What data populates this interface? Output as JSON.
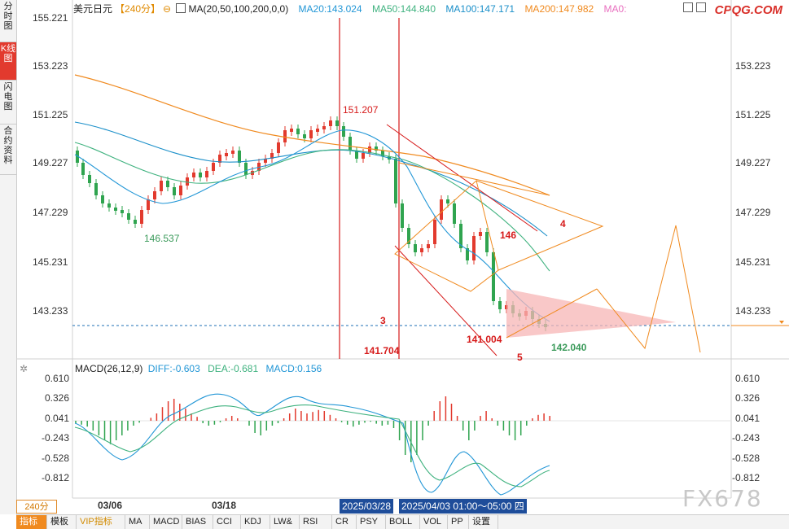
{
  "app": {
    "symbol": "美元日元",
    "period": "【240分】",
    "ma_label": "MA(20,50,100,200,0,0)"
  },
  "legend": {
    "ma20": "MA20:143.024",
    "ma50": "MA50:144.840",
    "ma100": "MA100:147.171",
    "ma200": "MA200:147.982",
    "ma0": "MA0:"
  },
  "logo": "CPQG.COM",
  "watermark": "FX678",
  "side_tabs": [
    "分时图",
    "K线图",
    "闪电图",
    "合约资料"
  ],
  "price_axis_left": [
    "155.221",
    "153.223",
    "151.225",
    "149.227",
    "147.229",
    "145.231",
    "143.233"
  ],
  "price_axis_right": [
    "153.223",
    "151.225",
    "149.227",
    "147.229",
    "145.231",
    "143.233"
  ],
  "macd": {
    "label": "MACD(26,12,9)",
    "diff": "DIFF:-0.603",
    "dea": "DEA:-0.681",
    "macd": "MACD:0.156",
    "axis_left": [
      "0.610",
      "0.326",
      "0.041",
      "-0.243",
      "-0.528",
      "-0.812"
    ],
    "axis_right": [
      "0.610",
      "0.326",
      "0.041",
      "-0.243",
      "-0.528",
      "-0.812"
    ]
  },
  "annotations": {
    "high": "151.207",
    "low_left": "146.537",
    "low_mid": "141.704",
    "low_right": "141.004",
    "last_low": "142.040",
    "n3": "3",
    "n4": "4",
    "n5": "5",
    "n146": "146"
  },
  "dates": [
    "03/06",
    "03/18"
  ],
  "period_box": "240分",
  "time_left": "2025/03/28",
  "time_right": "2025/04/03 01:00～05:00 四",
  "bottom_tabs": [
    "指标",
    "模板",
    "VIP指标",
    "MA",
    "MACD",
    "BIAS",
    "CCI",
    "KDJ",
    "LW&",
    "RSI",
    "CR",
    "PSY",
    "BOLL",
    "VOL",
    "PP",
    "设置"
  ],
  "colors": {
    "up": "#e23a2e",
    "down": "#2fa44f",
    "ma20": "#2196d6",
    "ma50": "#3fb27f",
    "ma100": "#1a8fc9",
    "ma200": "#f08a1f"
  }
}
